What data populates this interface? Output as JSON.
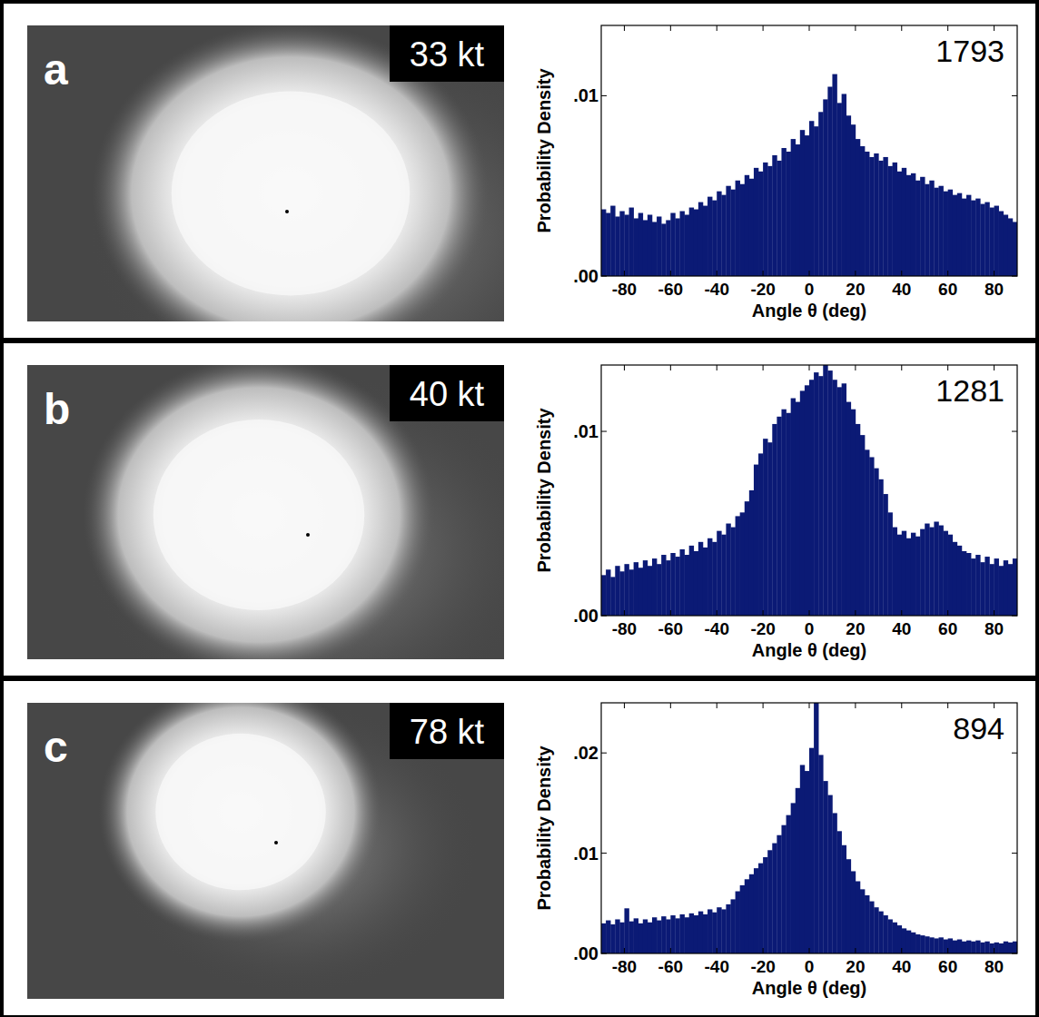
{
  "chart_data": [
    {
      "type": "histogram",
      "color": "#0b1a75",
      "x_label": "Angle θ (deg)",
      "y_label": "Probability Density",
      "annotations": [
        "a",
        "33 kt",
        "1793"
      ],
      "xlim": [
        -90,
        90
      ],
      "xticks": [
        -80,
        -60,
        -40,
        -20,
        0,
        20,
        40,
        60,
        80
      ],
      "ylim": [
        0,
        0.0139
      ],
      "yticks": [
        {
          "value": 0,
          "label": ".00"
        },
        {
          "value": 0.01,
          "label": ".01"
        }
      ],
      "bins": [
        -90,
        -88,
        -86,
        -84,
        -82,
        -80,
        -78,
        -76,
        -74,
        -72,
        -70,
        -68,
        -66,
        -64,
        -62,
        -60,
        -58,
        -56,
        -54,
        -52,
        -50,
        -48,
        -46,
        -44,
        -42,
        -40,
        -38,
        -36,
        -34,
        -32,
        -30,
        -28,
        -26,
        -24,
        -22,
        -20,
        -18,
        -16,
        -14,
        -12,
        -10,
        -8,
        -6,
        -4,
        -2,
        0,
        2,
        4,
        6,
        8,
        10,
        12,
        14,
        16,
        18,
        20,
        22,
        24,
        26,
        28,
        30,
        32,
        34,
        36,
        38,
        40,
        42,
        44,
        46,
        48,
        50,
        52,
        54,
        56,
        58,
        60,
        62,
        64,
        66,
        68,
        70,
        72,
        74,
        76,
        78,
        80,
        82,
        84,
        86,
        88,
        90
      ],
      "values": [
        0.0037,
        0.0035,
        0.0039,
        0.0033,
        0.0036,
        0.0034,
        0.0038,
        0.0032,
        0.0035,
        0.0031,
        0.0034,
        0.003,
        0.0033,
        0.0029,
        0.0031,
        0.0035,
        0.0032,
        0.0036,
        0.0034,
        0.0038,
        0.0037,
        0.0041,
        0.0039,
        0.0044,
        0.0042,
        0.0047,
        0.0045,
        0.005,
        0.0048,
        0.0053,
        0.0051,
        0.0056,
        0.0054,
        0.006,
        0.0058,
        0.0063,
        0.0061,
        0.0067,
        0.0064,
        0.0071,
        0.0069,
        0.0076,
        0.0073,
        0.0081,
        0.0078,
        0.0086,
        0.0083,
        0.0091,
        0.0098,
        0.0105,
        0.0112,
        0.0096,
        0.0101,
        0.0089,
        0.0084,
        0.0076,
        0.0072,
        0.0069,
        0.0066,
        0.0068,
        0.0064,
        0.0066,
        0.0061,
        0.0063,
        0.0058,
        0.006,
        0.0056,
        0.0057,
        0.0053,
        0.0055,
        0.0051,
        0.0053,
        0.0049,
        0.005,
        0.0047,
        0.0048,
        0.0045,
        0.0046,
        0.0043,
        0.0045,
        0.0042,
        0.0043,
        0.004,
        0.0041,
        0.0038,
        0.0039,
        0.0036,
        0.0034,
        0.0032,
        0.003
      ]
    },
    {
      "type": "histogram",
      "color": "#0b1a75",
      "x_label": "Angle θ (deg)",
      "y_label": "Probability Density",
      "annotations": [
        "b",
        "40 kt",
        "1281"
      ],
      "xlim": [
        -90,
        90
      ],
      "xticks": [
        -80,
        -60,
        -40,
        -20,
        0,
        20,
        40,
        60,
        80
      ],
      "ylim": [
        0,
        0.0136
      ],
      "yticks": [
        {
          "value": 0,
          "label": ".00"
        },
        {
          "value": 0.01,
          "label": ".01"
        }
      ],
      "bins": [
        -90,
        -88,
        -86,
        -84,
        -82,
        -80,
        -78,
        -76,
        -74,
        -72,
        -70,
        -68,
        -66,
        -64,
        -62,
        -60,
        -58,
        -56,
        -54,
        -52,
        -50,
        -48,
        -46,
        -44,
        -42,
        -40,
        -38,
        -36,
        -34,
        -32,
        -30,
        -28,
        -26,
        -24,
        -22,
        -20,
        -18,
        -16,
        -14,
        -12,
        -10,
        -8,
        -6,
        -4,
        -2,
        0,
        2,
        4,
        6,
        8,
        10,
        12,
        14,
        16,
        18,
        20,
        22,
        24,
        26,
        28,
        30,
        32,
        34,
        36,
        38,
        40,
        42,
        44,
        46,
        48,
        50,
        52,
        54,
        56,
        58,
        60,
        62,
        64,
        66,
        68,
        70,
        72,
        74,
        76,
        78,
        80,
        82,
        84,
        86,
        88,
        90
      ],
      "values": [
        0.0022,
        0.0025,
        0.0021,
        0.0027,
        0.0024,
        0.0028,
        0.0025,
        0.0029,
        0.0026,
        0.003,
        0.0027,
        0.0031,
        0.0028,
        0.0033,
        0.003,
        0.0034,
        0.0032,
        0.0036,
        0.0033,
        0.0038,
        0.0035,
        0.004,
        0.0037,
        0.0042,
        0.004,
        0.0046,
        0.0044,
        0.005,
        0.0048,
        0.0054,
        0.0056,
        0.0062,
        0.0068,
        0.0082,
        0.0088,
        0.0096,
        0.0094,
        0.0104,
        0.0108,
        0.0112,
        0.011,
        0.0118,
        0.0116,
        0.0122,
        0.0125,
        0.0128,
        0.0132,
        0.013,
        0.0136,
        0.0133,
        0.0128,
        0.0124,
        0.0126,
        0.0116,
        0.0112,
        0.0104,
        0.0098,
        0.009,
        0.0086,
        0.008,
        0.0074,
        0.0066,
        0.0056,
        0.0048,
        0.0044,
        0.0046,
        0.0042,
        0.0045,
        0.0043,
        0.0047,
        0.005,
        0.0048,
        0.0051,
        0.0049,
        0.0046,
        0.0044,
        0.004,
        0.0038,
        0.0035,
        0.0034,
        0.0031,
        0.0033,
        0.0029,
        0.0032,
        0.0028,
        0.0031,
        0.0027,
        0.003,
        0.0028,
        0.0031
      ]
    },
    {
      "type": "histogram",
      "color": "#0b1a75",
      "x_label": "Angle θ (deg)",
      "y_label": "Probability Density",
      "annotations": [
        "c",
        "78 kt",
        "894"
      ],
      "xlim": [
        -90,
        90
      ],
      "xticks": [
        -80,
        -60,
        -40,
        -20,
        0,
        20,
        40,
        60,
        80
      ],
      "ylim": [
        0,
        0.025
      ],
      "yticks": [
        {
          "value": 0,
          "label": ".00"
        },
        {
          "value": 0.01,
          "label": ".01"
        },
        {
          "value": 0.02,
          "label": ".02"
        }
      ],
      "bins": [
        -90,
        -88,
        -86,
        -84,
        -82,
        -80,
        -78,
        -76,
        -74,
        -72,
        -70,
        -68,
        -66,
        -64,
        -62,
        -60,
        -58,
        -56,
        -54,
        -52,
        -50,
        -48,
        -46,
        -44,
        -42,
        -40,
        -38,
        -36,
        -34,
        -32,
        -30,
        -28,
        -26,
        -24,
        -22,
        -20,
        -18,
        -16,
        -14,
        -12,
        -10,
        -8,
        -6,
        -4,
        -2,
        0,
        2,
        4,
        6,
        8,
        10,
        12,
        14,
        16,
        18,
        20,
        22,
        24,
        26,
        28,
        30,
        32,
        34,
        36,
        38,
        40,
        42,
        44,
        46,
        48,
        50,
        52,
        54,
        56,
        58,
        60,
        62,
        64,
        66,
        68,
        70,
        72,
        74,
        76,
        78,
        80,
        82,
        84,
        86,
        88,
        90
      ],
      "values": [
        0.003,
        0.0033,
        0.0029,
        0.0034,
        0.0031,
        0.0045,
        0.0032,
        0.0035,
        0.003,
        0.0034,
        0.0031,
        0.0036,
        0.0033,
        0.0037,
        0.0034,
        0.0038,
        0.0035,
        0.0039,
        0.0036,
        0.004,
        0.0038,
        0.0042,
        0.0039,
        0.0044,
        0.0041,
        0.0046,
        0.0044,
        0.0049,
        0.0054,
        0.0062,
        0.0068,
        0.0074,
        0.0079,
        0.0085,
        0.009,
        0.0096,
        0.0103,
        0.011,
        0.0118,
        0.0128,
        0.0138,
        0.015,
        0.0165,
        0.0188,
        0.0182,
        0.0205,
        0.025,
        0.0198,
        0.0172,
        0.0158,
        0.014,
        0.0122,
        0.0108,
        0.0094,
        0.0082,
        0.0072,
        0.0064,
        0.0058,
        0.0052,
        0.0046,
        0.0042,
        0.0038,
        0.0034,
        0.0031,
        0.0028,
        0.0025,
        0.0023,
        0.0021,
        0.0019,
        0.0018,
        0.0017,
        0.0016,
        0.0015,
        0.0016,
        0.0014,
        0.0015,
        0.0013,
        0.0014,
        0.0012,
        0.0013,
        0.0012,
        0.0013,
        0.0011,
        0.0012,
        0.001,
        0.0011,
        0.001,
        0.0012,
        0.0011,
        0.0012
      ]
    }
  ]
}
